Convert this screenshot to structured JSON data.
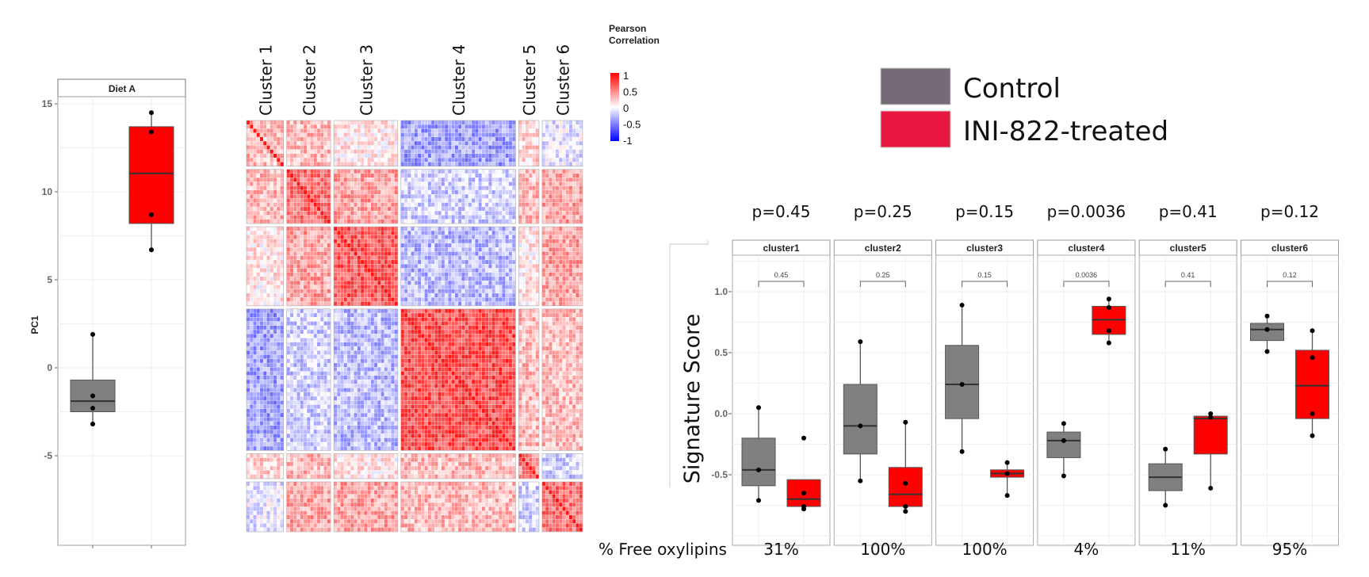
{
  "chart_data": [
    {
      "type": "box",
      "title": "",
      "strip": "Diet A",
      "ylabel": "PC1",
      "ylim": [
        -7.5,
        15.8
      ],
      "yticks": [
        -5,
        0,
        5,
        10,
        15
      ],
      "groups": [
        {
          "color": "#808080",
          "q1": -2.5,
          "median": -1.9,
          "q3": -0.7,
          "whisker_low": -3.2,
          "whisker_high": 1.9,
          "points": [
            1.9,
            -1.6,
            -2.3,
            -3.2
          ]
        },
        {
          "color": "#ff0000",
          "q1": 8.2,
          "median": 11.05,
          "q3": 13.7,
          "whisker_low": 6.7,
          "whisker_high": 14.5,
          "points": [
            14.5,
            13.4,
            8.7,
            6.7
          ]
        }
      ]
    },
    {
      "type": "heatmap",
      "legend_title": "Pearson Correlation",
      "legend_ticks": [
        "1",
        "0.5",
        "0",
        "-0.5",
        "-1"
      ],
      "scale_range": [
        -1,
        1
      ],
      "colors": {
        "low": "#0000ff",
        "mid": "#ffffff",
        "high": "#ff0000"
      },
      "clusters": [
        "Cluster 1",
        "Cluster 2",
        "Cluster 3",
        "Cluster 4",
        "Cluster 5",
        "Cluster 6"
      ],
      "cluster_sizes": [
        11,
        13,
        19,
        34,
        6,
        12
      ],
      "approx_block_means": [
        [
          0.3,
          0.3,
          0.1,
          -0.4,
          0.2,
          -0.1
        ],
        [
          0.3,
          0.6,
          0.4,
          -0.2,
          0.3,
          0.4
        ],
        [
          0.1,
          0.4,
          0.7,
          -0.3,
          0.1,
          0.4
        ],
        [
          -0.4,
          -0.2,
          -0.3,
          0.75,
          0.3,
          0.3
        ],
        [
          0.2,
          0.3,
          0.1,
          0.3,
          0.5,
          -0.2
        ],
        [
          -0.1,
          0.4,
          0.4,
          0.3,
          -0.2,
          0.6
        ]
      ]
    },
    {
      "type": "box",
      "ylabel": "Signature Score",
      "ylim": [
        -1.08,
        1.3
      ],
      "yticks": [
        "1.0",
        "0.5",
        "0.0",
        "-0.5"
      ],
      "legend": [
        {
          "name": "Control",
          "color": "#776a78"
        },
        {
          "name": "INI-822-treated",
          "color": "#e8173f"
        }
      ],
      "bottom_label": "% Free oxylipins",
      "panels": [
        {
          "strip": "cluster1",
          "p_big": "p=0.45",
          "p": "0.45",
          "free": "31%",
          "control": {
            "q1": -0.59,
            "median": -0.46,
            "q3": -0.2,
            "lo": -0.71,
            "hi": 0.05,
            "points": [
              0.05,
              -0.46,
              -0.71
            ]
          },
          "treated": {
            "q1": -0.76,
            "median": -0.7,
            "q3": -0.54,
            "lo": -0.78,
            "hi": -0.54,
            "points": [
              -0.2,
              -0.65,
              -0.76,
              -0.78
            ]
          }
        },
        {
          "strip": "cluster2",
          "p_big": "p=0.25",
          "p": "0.25",
          "free": "100%",
          "control": {
            "q1": -0.33,
            "median": -0.1,
            "q3": 0.24,
            "lo": -0.55,
            "hi": 0.59,
            "points": [
              0.59,
              -0.1,
              -0.55
            ]
          },
          "treated": {
            "q1": -0.76,
            "median": -0.66,
            "q3": -0.44,
            "lo": -0.8,
            "hi": -0.07,
            "points": [
              -0.07,
              -0.57,
              -0.76,
              -0.8
            ]
          }
        },
        {
          "strip": "cluster3",
          "p_big": "p=0.15",
          "p": "0.15",
          "free": "100%",
          "control": {
            "q1": -0.04,
            "median": 0.24,
            "q3": 0.56,
            "lo": -0.31,
            "hi": 0.89,
            "points": [
              0.89,
              0.24,
              -0.31
            ]
          },
          "treated": {
            "q1": -0.52,
            "median": -0.49,
            "q3": -0.46,
            "lo": -0.67,
            "hi": -0.4,
            "points": [
              -0.4,
              -0.49,
              -0.67
            ]
          }
        },
        {
          "strip": "cluster4",
          "p_big": "p=0.0036",
          "p": "0.0036",
          "free": "4%",
          "control": {
            "q1": -0.36,
            "median": -0.22,
            "q3": -0.15,
            "lo": -0.51,
            "hi": -0.08,
            "points": [
              -0.08,
              -0.22,
              -0.51
            ]
          },
          "treated": {
            "q1": 0.65,
            "median": 0.77,
            "q3": 0.88,
            "lo": 0.58,
            "hi": 0.94,
            "points": [
              0.94,
              0.87,
              0.68,
              0.58
            ]
          }
        },
        {
          "strip": "cluster5",
          "p_big": "p=0.41",
          "p": "0.41",
          "free": "11%",
          "control": {
            "q1": -0.63,
            "median": -0.52,
            "q3": -0.41,
            "lo": -0.75,
            "hi": -0.29,
            "points": [
              -0.29,
              -0.75
            ]
          },
          "treated": {
            "q1": -0.33,
            "median": -0.04,
            "q3": -0.02,
            "lo": -0.61,
            "hi": 0.0,
            "points": [
              0.0,
              -0.03,
              -0.61
            ]
          }
        },
        {
          "strip": "cluster6",
          "p_big": "p=0.12",
          "p": "0.12",
          "free": "95%",
          "control": {
            "q1": 0.6,
            "median": 0.69,
            "q3": 0.74,
            "lo": 0.51,
            "hi": 0.8,
            "points": [
              0.8,
              0.69,
              0.51
            ]
          },
          "treated": {
            "q1": -0.04,
            "median": 0.23,
            "q3": 0.52,
            "lo": -0.18,
            "hi": 0.68,
            "points": [
              0.68,
              0.46,
              0.0,
              -0.18
            ]
          }
        }
      ]
    }
  ]
}
